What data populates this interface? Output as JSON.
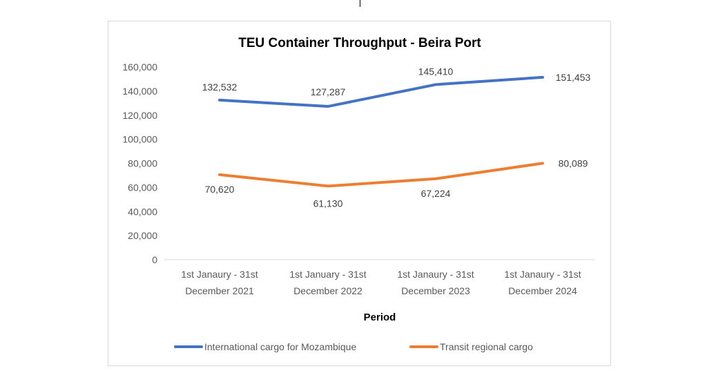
{
  "chart_data": {
    "type": "line",
    "title": "TEU Container Throughput - Beira Port",
    "xlabel": "Period",
    "ylabel": "",
    "ylim": [
      0,
      160000
    ],
    "yticks": [
      0,
      20000,
      40000,
      60000,
      80000,
      100000,
      120000,
      140000,
      160000
    ],
    "ytick_labels": [
      "0",
      "20,000",
      "40,000",
      "60,000",
      "80,000",
      "100,000",
      "120,000",
      "140,000",
      "160,000"
    ],
    "categories": [
      [
        "1st Janaury - 31st",
        "December 2021"
      ],
      [
        "1st January - 31st",
        "December 2022"
      ],
      [
        "1st Janaury - 31st",
        "December 2023"
      ],
      [
        "1st Janaury - 31st",
        "December 2024"
      ]
    ],
    "series": [
      {
        "name": "International cargo for Mozambique",
        "color": "#4472c4",
        "values": [
          132532,
          127287,
          145410,
          151453
        ],
        "labels": [
          "132,532",
          "127,287",
          "145,410",
          "151,453"
        ]
      },
      {
        "name": "Transit regional cargo",
        "color": "#ed7d31",
        "values": [
          70620,
          61130,
          67224,
          80089
        ],
        "labels": [
          "70,620",
          "61,130",
          "67,224",
          "80,089"
        ]
      }
    ],
    "grid": false,
    "legend": "bottom"
  }
}
